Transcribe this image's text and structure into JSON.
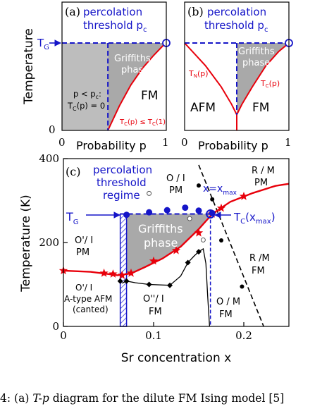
{
  "figure_caption": {
    "prefix": "4:",
    "panel_label": "(a)",
    "emph": "T-p",
    "text": "diagram for the dilute FM Ising model [5]"
  },
  "chart_data": [
    {
      "type": "area",
      "panel": "(a)",
      "xlabel": "Probability p",
      "ylabel": "Temperature",
      "x_ticks": [
        "0",
        "1"
      ],
      "y_ticks": [
        "0"
      ],
      "xlim": [
        0,
        1
      ],
      "ylim": [
        0,
        1
      ],
      "annotations": {
        "percolation": "percolation",
        "threshold": "threshold p",
        "threshold_sub": "c",
        "tg": "T",
        "tg_sub": "G",
        "griffiths_1": "Griffiths",
        "griffiths_2": "phase",
        "fm": "FM",
        "cond_1": "p < p",
        "cond_1_sub": "c",
        "cond_1_end": ":",
        "cond_2": "T",
        "cond_2_sub": "C",
        "cond_2_end": "(p) = 0",
        "curve_a": "T",
        "curve_a_sub": "C",
        "curve_b": "(p) ≤ T",
        "curve_b_sub": "C",
        "curve_end": "(1)"
      },
      "series": [
        {
          "name": "T_C(p)",
          "color": "#e8000b",
          "x": [
            0.44,
            0.55,
            0.66,
            0.77,
            0.88,
            0.96,
            1.0
          ],
          "y": [
            0.0,
            0.28,
            0.52,
            0.71,
            0.86,
            0.96,
            1.0
          ]
        }
      ],
      "percolation_p": 0.44,
      "tg_level": 1.0
    },
    {
      "type": "area",
      "panel": "(b)",
      "xlabel": "Probability p",
      "x_ticks": [
        "0",
        "1"
      ],
      "xlim": [
        0,
        1
      ],
      "ylim": [
        0,
        1
      ],
      "annotations": {
        "percolation": "percolation",
        "threshold": "threshold p",
        "threshold_sub": "c",
        "griffiths_1": "Griffiths",
        "griffiths_2": "phase",
        "tn": "T",
        "tn_sub": "N",
        "tn_end": "(p)",
        "tc": "T",
        "tc_sub": "C",
        "tc_end": "(p)",
        "afm": "AFM",
        "fm": "FM"
      },
      "series": [
        {
          "name": "T_N(p)",
          "color": "#e8000b",
          "x": [
            0.0,
            0.2,
            0.35,
            0.45,
            0.5
          ],
          "y": [
            1.0,
            0.74,
            0.5,
            0.3,
            0.18
          ]
        },
        {
          "name": "T_C(p)",
          "color": "#e8000b",
          "x": [
            0.5,
            0.55,
            0.65,
            0.78,
            0.9,
            1.0
          ],
          "y": [
            0.18,
            0.3,
            0.5,
            0.74,
            0.9,
            1.0
          ]
        }
      ],
      "bicritical_p": 0.5,
      "bicritical_t": 0.18,
      "percolation_p": 0.5
    },
    {
      "type": "scatter",
      "panel": "(c)",
      "xlabel": "Sr concentration x",
      "ylabel": "Temperature (K)",
      "xlim": [
        0,
        0.25
      ],
      "ylim": [
        0,
        400
      ],
      "x_ticks": [
        {
          "value": 0,
          "label": "0"
        },
        {
          "value": 0.1,
          "label": "0.1"
        },
        {
          "value": 0.2,
          "label": "0.2"
        }
      ],
      "y_ticks": [
        {
          "value": 0,
          "label": "0"
        },
        {
          "value": 200,
          "label": "200"
        },
        {
          "value": 400,
          "label": "400"
        }
      ],
      "regime_x": [
        0.063,
        0.07
      ],
      "tg": 268,
      "x_max": 0.163,
      "annotations": {
        "regime_1": "percolation",
        "regime_2": "threshold",
        "regime_3": "regime",
        "tg": "T",
        "tg_sub": "G",
        "xmax": "x=x",
        "xmax_sub": "max",
        "tcx": "T",
        "tcx_sub": "C",
        "tcx_end": "(x",
        "tcx_sub2": "max",
        "tcx_close": ")",
        "griffiths_1": "Griffiths",
        "griffiths_2": "phase",
        "opm_1": "O / I",
        "opm_2": "PM",
        "rm_pm_1": "R / M",
        "rm_pm_2": "PM",
        "rm_fm_1": "R /M",
        "rm_fm_2": "FM",
        "om_fm_1": "O / M",
        "om_fm_2": "FM",
        "o2_pm_1": "O'/ I",
        "o2_pm_2": "PM",
        "afm_1": "O'/ I",
        "afm_2": "A-type AFM",
        "afm_3": "(canted)",
        "o3_fm_1": "O''/ I",
        "o3_fm_2": "FM"
      },
      "series": [
        {
          "name": "T_C (stars)",
          "color": "#e8000b",
          "marker": "star",
          "x": [
            0.0,
            0.045,
            0.055,
            0.065,
            0.075,
            0.1,
            0.125,
            0.15,
            0.165,
            0.175,
            0.2
          ],
          "y": [
            133,
            127,
            125,
            122,
            127,
            156,
            181,
            223,
            268,
            282,
            310
          ]
        },
        {
          "name": "red line",
          "color": "#e8000b",
          "marker": "none",
          "x": [
            0.0,
            0.03,
            0.06,
            0.075,
            0.09,
            0.11,
            0.13,
            0.15,
            0.165,
            0.185,
            0.21,
            0.235,
            0.25
          ],
          "y": [
            133,
            130,
            122,
            126,
            141,
            162,
            190,
            232,
            268,
            297,
            318,
            335,
            340
          ]
        },
        {
          "name": "black diamonds",
          "color": "#000000",
          "marker": "diamond",
          "x": [
            0.063,
            0.07,
            0.095,
            0.118,
            0.138,
            0.15
          ],
          "y": [
            108,
            108,
            100,
            98,
            152,
            178
          ]
        },
        {
          "name": "blue circles",
          "color": "#1515c8",
          "marker": "circle",
          "x": [
            0.07,
            0.095,
            0.115,
            0.135,
            0.15,
            0.165
          ],
          "y": [
            266,
            272,
            277,
            283,
            276,
            270
          ]
        },
        {
          "name": "open circles",
          "color": "#555555",
          "marker": "open-circle",
          "x": [
            0.095,
            0.14,
            0.155
          ],
          "y": [
            317,
            257,
            206
          ]
        },
        {
          "name": "black dots",
          "color": "#000000",
          "marker": "dot",
          "x": [
            0.15,
            0.165,
            0.175,
            0.198
          ],
          "y": [
            336,
            303,
            205,
            95
          ]
        }
      ]
    }
  ]
}
